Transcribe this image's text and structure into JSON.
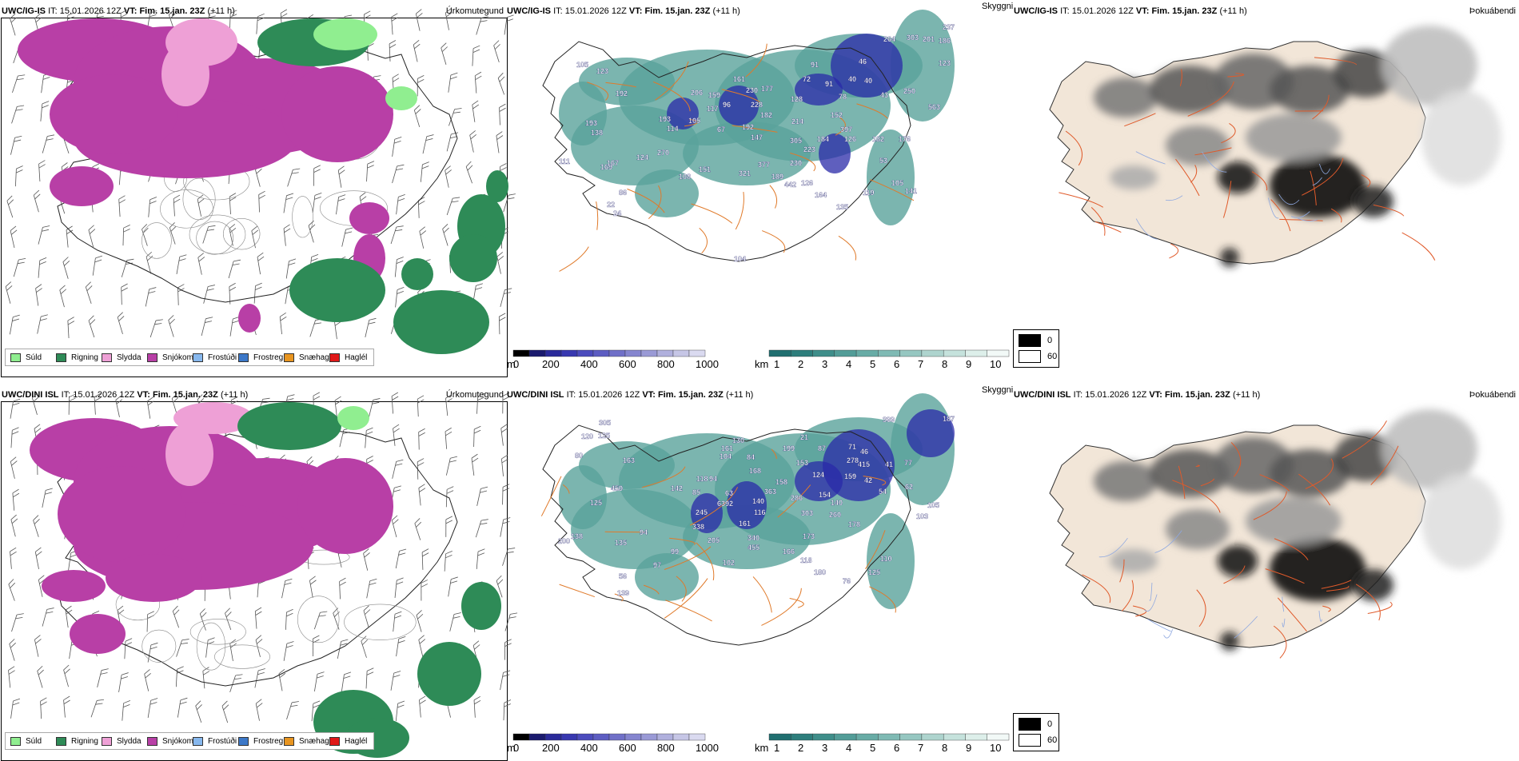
{
  "rows": [
    {
      "model": "UWC/IG-IS",
      "it_label": "IT:",
      "it_value": "15.01.2026 12Z",
      "vt_label": "VT:",
      "vt_value": "Fim. 15.jan. 23Z",
      "lead": "(+11 h)",
      "labels_mid": [
        {
          "v": "105",
          "x": 87,
          "y": 62
        },
        {
          "v": "123",
          "x": 112,
          "y": 70
        },
        {
          "v": "192",
          "x": 136,
          "y": 98
        },
        {
          "v": "206",
          "x": 230,
          "y": 97
        },
        {
          "v": "159",
          "x": 252,
          "y": 100
        },
        {
          "v": "161",
          "x": 283,
          "y": 80
        },
        {
          "v": "230",
          "x": 299,
          "y": 94
        },
        {
          "v": "177",
          "x": 318,
          "y": 92
        },
        {
          "v": "91",
          "x": 380,
          "y": 62
        },
        {
          "v": "72",
          "x": 370,
          "y": 80
        },
        {
          "v": "91",
          "x": 398,
          "y": 86
        },
        {
          "v": "40",
          "x": 427,
          "y": 80
        },
        {
          "v": "40",
          "x": 447,
          "y": 82
        },
        {
          "v": "46",
          "x": 440,
          "y": 58
        },
        {
          "v": "264",
          "x": 471,
          "y": 30
        },
        {
          "v": "303",
          "x": 500,
          "y": 28
        },
        {
          "v": "201",
          "x": 520,
          "y": 30
        },
        {
          "v": "186",
          "x": 540,
          "y": 32
        },
        {
          "v": "237",
          "x": 545,
          "y": 15
        },
        {
          "v": "123",
          "x": 540,
          "y": 60
        },
        {
          "v": "78",
          "x": 415,
          "y": 102
        },
        {
          "v": "43",
          "x": 467,
          "y": 100
        },
        {
          "v": "250",
          "x": 496,
          "y": 95
        },
        {
          "v": "563",
          "x": 527,
          "y": 115
        },
        {
          "v": "152",
          "x": 405,
          "y": 125
        },
        {
          "v": "128",
          "x": 355,
          "y": 105
        },
        {
          "v": "228",
          "x": 305,
          "y": 112
        },
        {
          "v": "182",
          "x": 317,
          "y": 125
        },
        {
          "v": "96",
          "x": 270,
          "y": 112
        },
        {
          "v": "117",
          "x": 250,
          "y": 117
        },
        {
          "v": "193",
          "x": 190,
          "y": 130
        },
        {
          "v": "105",
          "x": 227,
          "y": 132
        },
        {
          "v": "114",
          "x": 200,
          "y": 142
        },
        {
          "v": "67",
          "x": 263,
          "y": 143
        },
        {
          "v": "192",
          "x": 294,
          "y": 140
        },
        {
          "v": "147",
          "x": 305,
          "y": 153
        },
        {
          "v": "214",
          "x": 356,
          "y": 133
        },
        {
          "v": "397",
          "x": 417,
          "y": 143
        },
        {
          "v": "182",
          "x": 457,
          "y": 155
        },
        {
          "v": "176",
          "x": 490,
          "y": 155
        },
        {
          "v": "126",
          "x": 422,
          "y": 155
        },
        {
          "v": "184",
          "x": 388,
          "y": 155
        },
        {
          "v": "305",
          "x": 354,
          "y": 157
        },
        {
          "v": "223",
          "x": 371,
          "y": 168
        },
        {
          "v": "138",
          "x": 105,
          "y": 147
        },
        {
          "v": "193",
          "x": 98,
          "y": 135
        },
        {
          "v": "111",
          "x": 65,
          "y": 183
        },
        {
          "v": "169",
          "x": 117,
          "y": 190
        },
        {
          "v": "167",
          "x": 125,
          "y": 185
        },
        {
          "v": "124",
          "x": 162,
          "y": 178
        },
        {
          "v": "270",
          "x": 188,
          "y": 172
        },
        {
          "v": "151",
          "x": 240,
          "y": 193
        },
        {
          "v": "230",
          "x": 354,
          "y": 185
        },
        {
          "v": "377",
          "x": 314,
          "y": 187
        },
        {
          "v": "321",
          "x": 290,
          "y": 198
        },
        {
          "v": "189",
          "x": 331,
          "y": 202
        },
        {
          "v": "108",
          "x": 215,
          "y": 202
        },
        {
          "v": "105",
          "x": 481,
          "y": 210
        },
        {
          "v": "119",
          "x": 445,
          "y": 222
        },
        {
          "v": "126",
          "x": 368,
          "y": 210
        },
        {
          "v": "164",
          "x": 385,
          "y": 225
        },
        {
          "v": "86",
          "x": 140,
          "y": 222
        },
        {
          "v": "22",
          "x": 125,
          "y": 237
        },
        {
          "v": "24",
          "x": 133,
          "y": 248
        },
        {
          "v": "135",
          "x": 412,
          "y": 240
        },
        {
          "v": "141",
          "x": 498,
          "y": 220
        },
        {
          "v": "104",
          "x": 284,
          "y": 305
        },
        {
          "v": "53",
          "x": 466,
          "y": 182
        },
        {
          "v": "442",
          "x": 347,
          "y": 212
        }
      ]
    },
    {
      "model": "UWC/DINI ISL",
      "it_label": "IT:",
      "it_value": "15.01.2026 12Z",
      "vt_label": "VT:",
      "vt_value": "Fim. 15.jan. 23Z",
      "lead": "(+11 h)",
      "labels_mid": [
        {
          "v": "305",
          "x": 115,
          "y": 30
        },
        {
          "v": "120",
          "x": 93,
          "y": 47
        },
        {
          "v": "125",
          "x": 114,
          "y": 46
        },
        {
          "v": "163",
          "x": 145,
          "y": 77
        },
        {
          "v": "80",
          "x": 85,
          "y": 71
        },
        {
          "v": "399",
          "x": 470,
          "y": 26
        },
        {
          "v": "187",
          "x": 545,
          "y": 25
        },
        {
          "v": "130",
          "x": 282,
          "y": 52
        },
        {
          "v": "161",
          "x": 268,
          "y": 62
        },
        {
          "v": "104",
          "x": 266,
          "y": 72
        },
        {
          "v": "84",
          "x": 300,
          "y": 73
        },
        {
          "v": "199",
          "x": 345,
          "y": 62
        },
        {
          "v": "21",
          "x": 367,
          "y": 48
        },
        {
          "v": "87",
          "x": 389,
          "y": 62
        },
        {
          "v": "71",
          "x": 427,
          "y": 60
        },
        {
          "v": "46",
          "x": 442,
          "y": 66
        },
        {
          "v": "278",
          "x": 425,
          "y": 77
        },
        {
          "v": "415",
          "x": 439,
          "y": 82
        },
        {
          "v": "41",
          "x": 473,
          "y": 82
        },
        {
          "v": "77",
          "x": 497,
          "y": 80
        },
        {
          "v": "159",
          "x": 422,
          "y": 97
        },
        {
          "v": "42",
          "x": 447,
          "y": 102
        },
        {
          "v": "54",
          "x": 465,
          "y": 116
        },
        {
          "v": "62",
          "x": 498,
          "y": 110
        },
        {
          "v": "105",
          "x": 526,
          "y": 133
        },
        {
          "v": "103",
          "x": 512,
          "y": 147
        },
        {
          "v": "168",
          "x": 303,
          "y": 90
        },
        {
          "v": "153",
          "x": 362,
          "y": 80
        },
        {
          "v": "124",
          "x": 382,
          "y": 95
        },
        {
          "v": "158",
          "x": 336,
          "y": 104
        },
        {
          "v": "363",
          "x": 322,
          "y": 116
        },
        {
          "v": "286",
          "x": 355,
          "y": 124
        },
        {
          "v": "154",
          "x": 390,
          "y": 120
        },
        {
          "v": "140",
          "x": 405,
          "y": 130
        },
        {
          "v": "260",
          "x": 403,
          "y": 145
        },
        {
          "v": "303",
          "x": 368,
          "y": 143
        },
        {
          "v": "178",
          "x": 427,
          "y": 157
        },
        {
          "v": "118",
          "x": 237,
          "y": 100
        },
        {
          "v": "94",
          "x": 253,
          "y": 100
        },
        {
          "v": "142",
          "x": 205,
          "y": 112
        },
        {
          "v": "85",
          "x": 232,
          "y": 117
        },
        {
          "v": "63",
          "x": 273,
          "y": 118
        },
        {
          "v": "140",
          "x": 307,
          "y": 128
        },
        {
          "v": "6392",
          "x": 263,
          "y": 131
        },
        {
          "v": "116",
          "x": 309,
          "y": 142
        },
        {
          "v": "245",
          "x": 236,
          "y": 142
        },
        {
          "v": "161",
          "x": 290,
          "y": 156
        },
        {
          "v": "338",
          "x": 232,
          "y": 160
        },
        {
          "v": "340",
          "x": 301,
          "y": 174
        },
        {
          "v": "455",
          "x": 301,
          "y": 186
        },
        {
          "v": "205",
          "x": 251,
          "y": 177
        },
        {
          "v": "459",
          "x": 130,
          "y": 112
        },
        {
          "v": "125",
          "x": 104,
          "y": 130
        },
        {
          "v": "94",
          "x": 166,
          "y": 167
        },
        {
          "v": "138",
          "x": 80,
          "y": 172
        },
        {
          "v": "200",
          "x": 64,
          "y": 178
        },
        {
          "v": "135",
          "x": 135,
          "y": 180
        },
        {
          "v": "99",
          "x": 205,
          "y": 191
        },
        {
          "v": "166",
          "x": 345,
          "y": 191
        },
        {
          "v": "173",
          "x": 370,
          "y": 172
        },
        {
          "v": "118",
          "x": 367,
          "y": 202
        },
        {
          "v": "180",
          "x": 384,
          "y": 217
        },
        {
          "v": "102",
          "x": 270,
          "y": 205
        },
        {
          "v": "97",
          "x": 183,
          "y": 208
        },
        {
          "v": "56",
          "x": 140,
          "y": 222
        },
        {
          "v": "139",
          "x": 138,
          "y": 243
        },
        {
          "v": "125",
          "x": 452,
          "y": 217
        },
        {
          "v": "76",
          "x": 420,
          "y": 228
        },
        {
          "v": "110",
          "x": 467,
          "y": 200
        }
      ]
    }
  ],
  "panel_titles": {
    "left": "Úrkomutegund",
    "middle": "Skyggni",
    "right": "Þokuábendi"
  },
  "precip_legend": [
    {
      "label": "Súld",
      "color": "#90ee90"
    },
    {
      "label": "Rigning",
      "color": "#2e8b57"
    },
    {
      "label": "Slydda",
      "color": "#eea0d6"
    },
    {
      "label": "Snjókoma",
      "color": "#b83fa6"
    },
    {
      "label": "Frostúði",
      "color": "#87b8ee"
    },
    {
      "label": "Frostregn",
      "color": "#3c78c8"
    },
    {
      "label": "Snæhagl",
      "color": "#e89520"
    },
    {
      "label": "Haglél",
      "color": "#e01818"
    }
  ],
  "cbar_m": {
    "unit": "m",
    "ticks": [
      "0",
      "200",
      "400",
      "600",
      "800",
      "1000"
    ],
    "colors": [
      "#000000",
      "#1a1a6e",
      "#2a2a9a",
      "#3838b0",
      "#4c4cbd",
      "#5d5dc2",
      "#7070c8",
      "#8585cf",
      "#9a9ad6",
      "#b0b0dd",
      "#c6c6e6",
      "#dadaf0"
    ]
  },
  "cbar_km": {
    "unit": "km",
    "ticks": [
      "1",
      "2",
      "3",
      "4",
      "5",
      "6",
      "7",
      "8",
      "9",
      "10"
    ],
    "colors": [
      "#206f70",
      "#2e7e7c",
      "#3f8e8a",
      "#539d98",
      "#68aca6",
      "#7fbab4",
      "#96c7c1",
      "#aed4ce",
      "#c5e2dc",
      "#ddefea",
      "#f2f9f7"
    ]
  },
  "fog_legend": [
    {
      "label": "0",
      "color": "#000000"
    },
    {
      "label": "60",
      "color": "#ffffff"
    }
  ],
  "colors": {
    "snow": "#b83fa6",
    "rain": "#2e8b57",
    "sleet": "#eea0d6",
    "drizzle": "#90ee90",
    "vis_blue": "#2a2aa8",
    "vis_teal": "#5aa39b",
    "roads": "#e07a2a",
    "fog_land": "#f2e6d8"
  }
}
